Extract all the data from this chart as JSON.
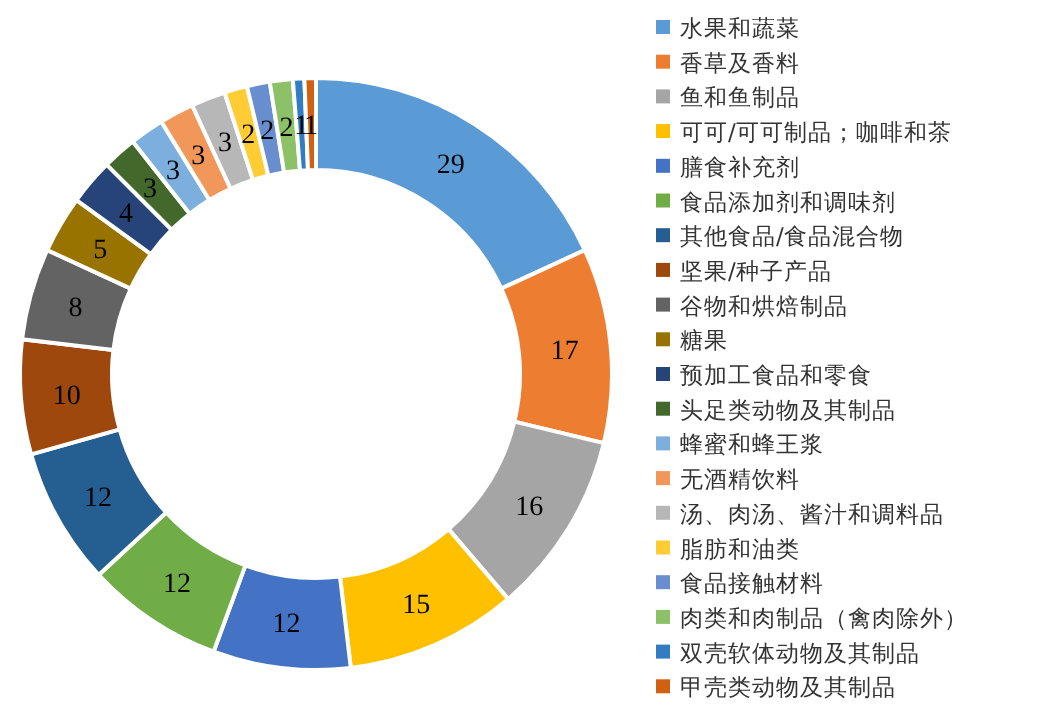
{
  "chart_data": {
    "type": "donut",
    "legend": "right",
    "data_labels": true,
    "categories": [
      "水果和蔬菜",
      "香草及香料",
      "鱼和鱼制品",
      "可可/可可制品；咖啡和茶",
      "膳食补充剂",
      "食品添加剂和调味剂",
      "其他食品/食品混合物",
      "坚果/种子产品",
      "谷物和烘焙制品",
      "糖果",
      "预加工食品和零食",
      "头足类动物及其制品",
      "蜂蜜和蜂王浆",
      "无酒精饮料",
      "汤、肉汤、酱汁和调料品",
      "脂肪和油类",
      "食品接触材料",
      "肉类和肉制品（禽肉除外）",
      "双壳软体动物及其制品",
      "甲壳类动物及其制品"
    ],
    "values": [
      29,
      17,
      16,
      15,
      12,
      12,
      12,
      10,
      8,
      5,
      4,
      3,
      3,
      3,
      3,
      2,
      2,
      2,
      1,
      1
    ],
    "colors": [
      "#5b9bd5",
      "#ed7d31",
      "#a5a5a5",
      "#ffc000",
      "#4472c4",
      "#70ad47",
      "#255e91",
      "#9e480e",
      "#636363",
      "#997300",
      "#264478",
      "#43682b",
      "#7cafdd",
      "#f1975a",
      "#b7b7b7",
      "#ffcd33",
      "#698ed0",
      "#8cc168",
      "#327dc2",
      "#d26012"
    ]
  }
}
